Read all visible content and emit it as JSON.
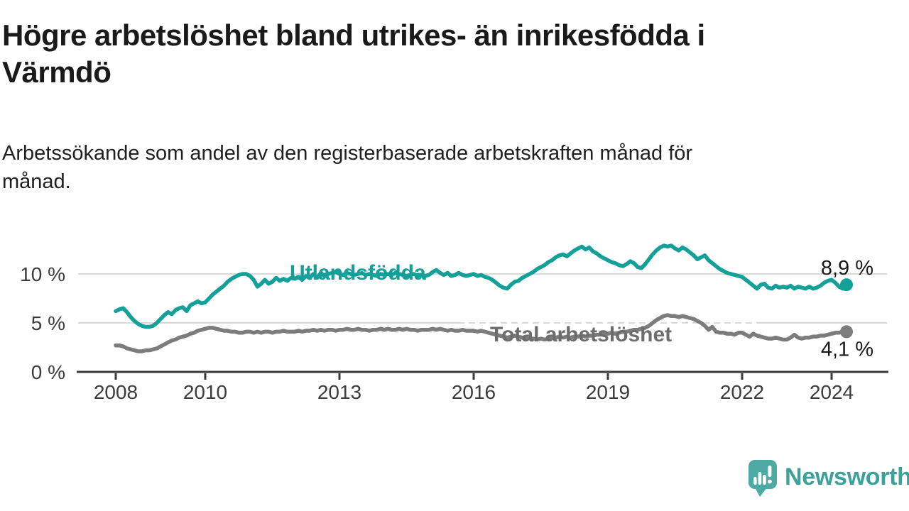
{
  "title": "Högre arbetslöshet bland utrikes- än inrikesfödda i\nVärmdö",
  "subtitle": "Arbetssökande som andel av den registerbaserade arbetskraften månad för\nmånad.",
  "logo": {
    "text": "Newsworthy",
    "icon": "speech-bubble-with-bar-chart-and-exclamation",
    "text_color": "#3ba29b",
    "icon_color": "#4ca9a3"
  },
  "chart_data": {
    "type": "line",
    "x": {
      "frequency": "monthly",
      "start": "2008-01",
      "end": "2024-05"
    },
    "x_tick_years": [
      2008,
      2010,
      2013,
      2016,
      2019,
      2022,
      2024
    ],
    "y_ticks": [
      0,
      5,
      10
    ],
    "y_tick_suffix": " %",
    "ylim": [
      0,
      14.2
    ],
    "grid": "horizontal",
    "legend": "inline-labels",
    "colors": {
      "gridline": "#d9d9d9",
      "axis": "#383838",
      "tick_text": "#3c3c3c",
      "value_text": "#1a1a1a"
    },
    "series": [
      {
        "name": "Utlandsfödda",
        "color": "#13a098",
        "end_label": "8,9 %",
        "values": [
          6.2,
          6.4,
          6.5,
          6.1,
          5.6,
          5.2,
          4.9,
          4.7,
          4.6,
          4.6,
          4.7,
          5.0,
          5.4,
          5.8,
          6.1,
          5.9,
          6.3,
          6.5,
          6.6,
          6.2,
          6.8,
          7.0,
          7.2,
          7.0,
          7.1,
          7.5,
          7.9,
          8.2,
          8.5,
          8.8,
          9.2,
          9.5,
          9.7,
          9.9,
          10.0,
          10.0,
          9.8,
          9.4,
          8.7,
          9.0,
          9.4,
          9.0,
          9.2,
          9.6,
          9.3,
          9.5,
          9.3,
          9.6,
          9.5,
          9.7,
          9.4,
          9.8,
          9.6,
          10.0,
          9.6,
          10.1,
          9.8,
          10.0,
          10.1,
          10.2,
          10.0,
          9.9,
          10.1,
          10.0,
          9.9,
          10.0,
          10.1,
          9.9,
          10.0,
          9.9,
          9.8,
          10.0,
          9.9,
          10.0,
          9.9,
          10.1,
          10.0,
          9.9,
          9.8,
          9.9,
          10.0,
          9.8,
          9.9,
          9.8,
          9.9,
          10.2,
          10.4,
          10.1,
          9.9,
          10.1,
          9.8,
          9.9,
          10.1,
          9.9,
          9.8,
          9.9,
          10.0,
          9.8,
          9.9,
          9.7,
          9.6,
          9.4,
          9.1,
          8.8,
          8.6,
          8.5,
          8.9,
          9.2,
          9.3,
          9.6,
          9.8,
          10.0,
          10.2,
          10.5,
          10.7,
          10.9,
          11.2,
          11.4,
          11.7,
          11.9,
          12.0,
          11.8,
          12.1,
          12.4,
          12.6,
          12.8,
          12.5,
          12.7,
          12.3,
          12.1,
          11.8,
          11.6,
          11.4,
          11.2,
          11.1,
          10.9,
          10.8,
          11.0,
          11.3,
          11.1,
          10.7,
          10.6,
          11.0,
          11.5,
          12.0,
          12.4,
          12.7,
          12.9,
          12.8,
          12.9,
          12.6,
          12.4,
          12.7,
          12.5,
          12.2,
          11.9,
          11.5,
          11.7,
          11.9,
          11.4,
          11.1,
          10.8,
          10.5,
          10.3,
          10.1,
          10.0,
          9.9,
          9.8,
          9.7,
          9.4,
          9.1,
          8.8,
          8.5,
          8.9,
          9.0,
          8.6,
          8.5,
          8.8,
          8.6,
          8.7,
          8.6,
          8.8,
          8.5,
          8.7,
          8.6,
          8.5,
          8.7,
          8.5,
          8.6,
          8.8,
          9.1,
          9.3,
          9.4,
          9.1,
          8.7,
          8.5,
          8.9
        ]
      },
      {
        "name": "Total arbetslöshet",
        "color": "#7c7c7c",
        "label_color": "#6d6d6d",
        "end_label": "4,1 %",
        "values": [
          2.7,
          2.7,
          2.6,
          2.4,
          2.3,
          2.2,
          2.1,
          2.1,
          2.2,
          2.2,
          2.3,
          2.4,
          2.6,
          2.8,
          3.0,
          3.2,
          3.3,
          3.5,
          3.6,
          3.7,
          3.9,
          4.0,
          4.2,
          4.3,
          4.4,
          4.5,
          4.5,
          4.4,
          4.3,
          4.2,
          4.2,
          4.1,
          4.1,
          4.0,
          4.0,
          4.1,
          4.1,
          4.0,
          4.1,
          4.0,
          4.1,
          4.1,
          4.0,
          4.1,
          4.1,
          4.2,
          4.1,
          4.1,
          4.1,
          4.2,
          4.1,
          4.2,
          4.2,
          4.3,
          4.2,
          4.3,
          4.2,
          4.3,
          4.3,
          4.2,
          4.3,
          4.3,
          4.4,
          4.3,
          4.3,
          4.4,
          4.3,
          4.3,
          4.2,
          4.3,
          4.3,
          4.4,
          4.3,
          4.4,
          4.3,
          4.3,
          4.4,
          4.3,
          4.4,
          4.3,
          4.3,
          4.2,
          4.3,
          4.3,
          4.3,
          4.4,
          4.3,
          4.4,
          4.3,
          4.2,
          4.3,
          4.2,
          4.2,
          4.3,
          4.2,
          4.2,
          4.2,
          4.1,
          4.2,
          4.1,
          4.0,
          3.9,
          3.8,
          3.7,
          3.6,
          3.5,
          3.6,
          3.7,
          3.6,
          3.5,
          3.5,
          3.4,
          3.4,
          3.3,
          3.4,
          3.3,
          3.4,
          3.5,
          3.5,
          3.6,
          3.5,
          3.6,
          3.5,
          3.6,
          3.6,
          3.7,
          3.6,
          3.7,
          3.7,
          3.8,
          3.8,
          3.9,
          3.9,
          4.0,
          3.9,
          4.0,
          4.1,
          4.1,
          4.2,
          4.3,
          4.3,
          4.4,
          4.5,
          4.7,
          5.0,
          5.3,
          5.5,
          5.7,
          5.8,
          5.7,
          5.7,
          5.6,
          5.7,
          5.6,
          5.5,
          5.4,
          5.2,
          5.0,
          4.7,
          4.3,
          4.6,
          4.1,
          4.0,
          4.0,
          3.9,
          3.9,
          3.8,
          4.0,
          4.0,
          3.8,
          3.6,
          3.9,
          3.7,
          3.6,
          3.5,
          3.4,
          3.4,
          3.5,
          3.4,
          3.3,
          3.3,
          3.5,
          3.8,
          3.5,
          3.4,
          3.5,
          3.5,
          3.6,
          3.6,
          3.7,
          3.7,
          3.8,
          3.9,
          4.0,
          4.0,
          4.1,
          4.1
        ]
      }
    ]
  }
}
